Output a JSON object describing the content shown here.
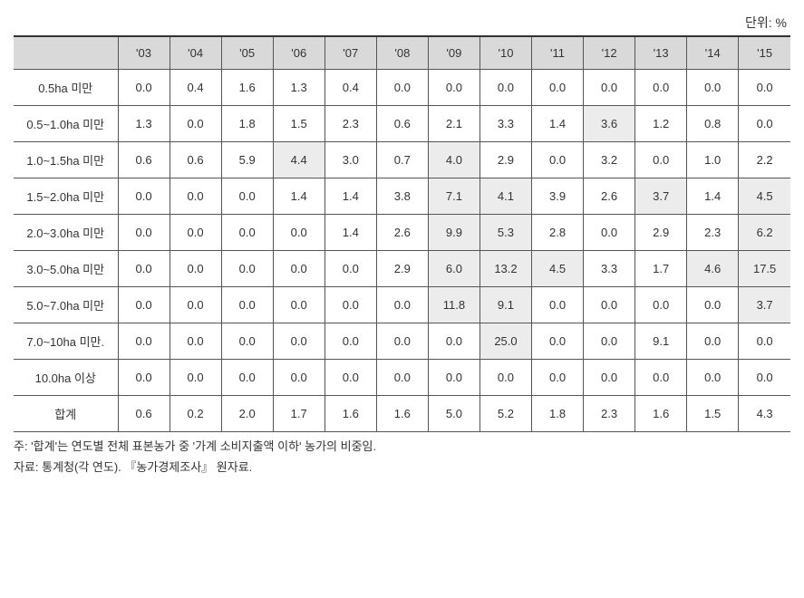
{
  "unit_label": "단위: %",
  "table": {
    "type": "table",
    "background_color": "#ffffff",
    "header_bg": "#d9d9d9",
    "highlight_bg": "#ececec",
    "border_color": "#555555",
    "border_top_color": "#333333",
    "font_size": 13,
    "columns": [
      "",
      "'03",
      "'04",
      "'05",
      "'06",
      "'07",
      "'08",
      "'09",
      "'10",
      "'11",
      "'12",
      "'13",
      "'14",
      "'15"
    ],
    "col_widths": {
      "first": 115,
      "rest": 57
    },
    "rows": [
      {
        "label": "0.5ha 미만",
        "values": [
          "0.0",
          "0.4",
          "1.6",
          "1.3",
          "0.4",
          "0.0",
          "0.0",
          "0.0",
          "0.0",
          "0.0",
          "0.0",
          "0.0",
          "0.0"
        ],
        "highlight": []
      },
      {
        "label": "0.5~1.0ha 미만",
        "values": [
          "1.3",
          "0.0",
          "1.8",
          "1.5",
          "2.3",
          "0.6",
          "2.1",
          "3.3",
          "1.4",
          "3.6",
          "1.2",
          "0.8",
          "0.0"
        ],
        "highlight": [
          9
        ]
      },
      {
        "label": "1.0~1.5ha 미만",
        "values": [
          "0.6",
          "0.6",
          "5.9",
          "4.4",
          "3.0",
          "0.7",
          "4.0",
          "2.9",
          "0.0",
          "3.2",
          "0.0",
          "1.0",
          "2.2"
        ],
        "highlight": [
          3,
          6
        ]
      },
      {
        "label": "1.5~2.0ha 미만",
        "values": [
          "0.0",
          "0.0",
          "0.0",
          "1.4",
          "1.4",
          "3.8",
          "7.1",
          "4.1",
          "3.9",
          "2.6",
          "3.7",
          "1.4",
          "4.5"
        ],
        "highlight": [
          6,
          7,
          10,
          12
        ]
      },
      {
        "label": "2.0~3.0ha 미만",
        "values": [
          "0.0",
          "0.0",
          "0.0",
          "0.0",
          "1.4",
          "2.6",
          "9.9",
          "5.3",
          "2.8",
          "0.0",
          "2.9",
          "2.3",
          "6.2"
        ],
        "highlight": [
          6,
          7,
          12
        ]
      },
      {
        "label": "3.0~5.0ha 미만",
        "values": [
          "0.0",
          "0.0",
          "0.0",
          "0.0",
          "0.0",
          "2.9",
          "6.0",
          "13.2",
          "4.5",
          "3.3",
          "1.7",
          "4.6",
          "17.5"
        ],
        "highlight": [
          6,
          7,
          8,
          11,
          12
        ]
      },
      {
        "label": "5.0~7.0ha 미만",
        "values": [
          "0.0",
          "0.0",
          "0.0",
          "0.0",
          "0.0",
          "0.0",
          "11.8",
          "9.1",
          "0.0",
          "0.0",
          "0.0",
          "0.0",
          "3.7"
        ],
        "highlight": [
          6,
          7,
          12
        ]
      },
      {
        "label": "7.0~10ha 미만.",
        "values": [
          "0.0",
          "0.0",
          "0.0",
          "0.0",
          "0.0",
          "0.0",
          "0.0",
          "25.0",
          "0.0",
          "0.0",
          "9.1",
          "0.0",
          "0.0"
        ],
        "highlight": [
          7
        ]
      },
      {
        "label": "10.0ha 이상",
        "values": [
          "0.0",
          "0.0",
          "0.0",
          "0.0",
          "0.0",
          "0.0",
          "0.0",
          "0.0",
          "0.0",
          "0.0",
          "0.0",
          "0.0",
          "0.0"
        ],
        "highlight": []
      },
      {
        "label": "합계",
        "values": [
          "0.6",
          "0.2",
          "2.0",
          "1.7",
          "1.6",
          "1.6",
          "5.0",
          "5.2",
          "1.8",
          "2.3",
          "1.6",
          "1.5",
          "4.3"
        ],
        "highlight": []
      }
    ]
  },
  "notes": {
    "line1": "주: '합계'는 연도별 전체 표본농가 중 '가계 소비지출액 이하' 농가의 비중임.",
    "line2": "자료: 통계청(각 연도). 『농가경제조사』 원자료."
  }
}
